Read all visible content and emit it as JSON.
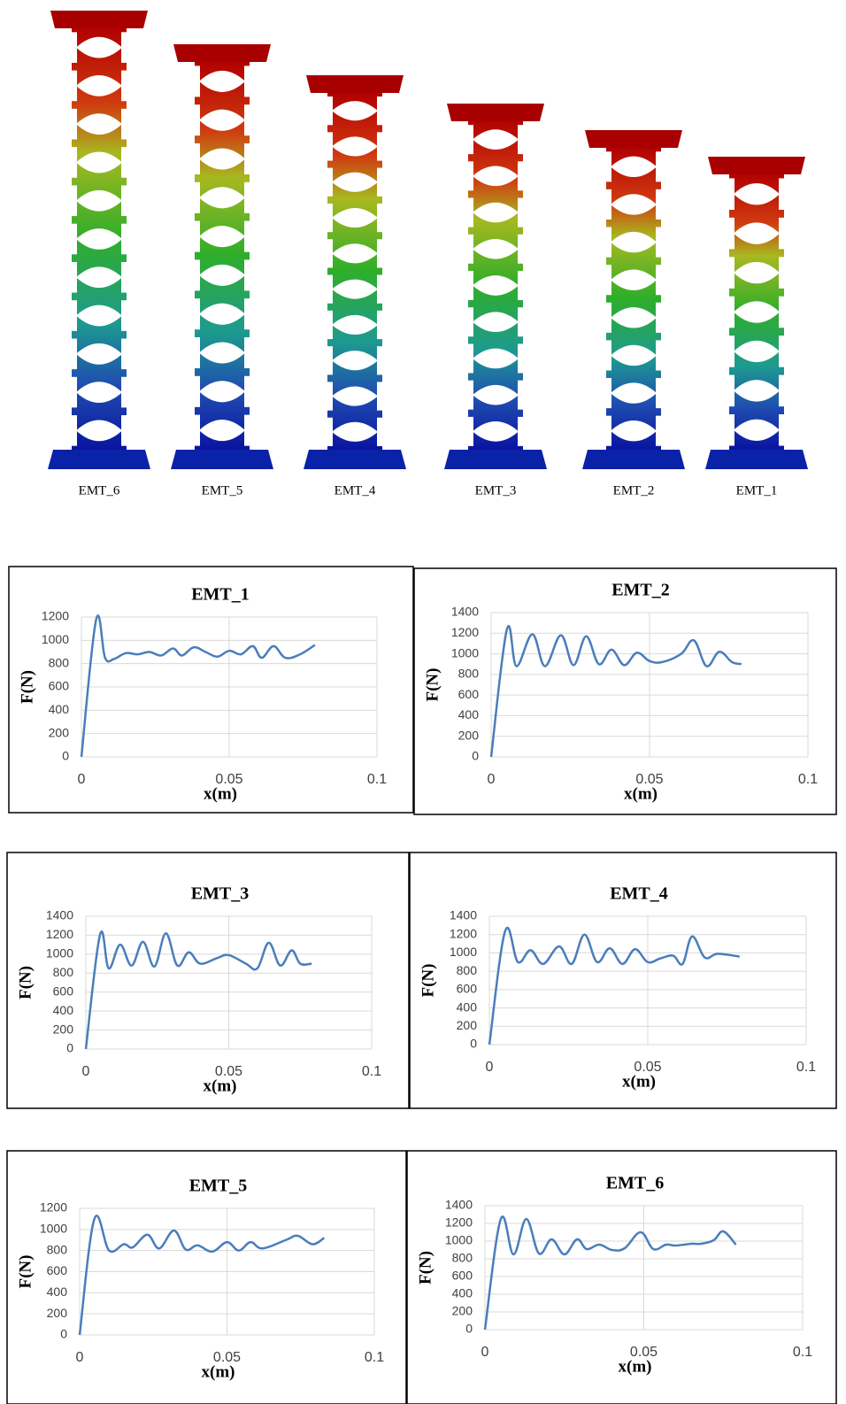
{
  "figure": {
    "labels": [
      "EMT_6",
      "EMT_5",
      "EMT_4",
      "EMT_3",
      "EMT_2",
      "EMT_1"
    ]
  },
  "chart_data": [
    {
      "type": "line",
      "title": "EMT_1",
      "x_label": "x(m)",
      "y_label": "F(N)",
      "xlim": [
        0,
        0.1
      ],
      "xticks": [
        0,
        0.05,
        0.1
      ],
      "ylim": [
        0,
        1200
      ],
      "yticks": [
        0,
        200,
        400,
        600,
        800,
        1000,
        1200
      ],
      "grid": true,
      "x": [
        0,
        0.005,
        0.008,
        0.011,
        0.015,
        0.019,
        0.023,
        0.027,
        0.031,
        0.034,
        0.038,
        0.042,
        0.046,
        0.05,
        0.054,
        0.058,
        0.061,
        0.065,
        0.069,
        0.074,
        0.079
      ],
      "series": [
        {
          "color": "#4a7ebb",
          "values": [
            0,
            1180,
            850,
            840,
            890,
            880,
            900,
            870,
            930,
            870,
            940,
            900,
            860,
            910,
            880,
            950,
            850,
            950,
            850,
            880,
            960
          ]
        }
      ]
    },
    {
      "type": "line",
      "title": "EMT_2",
      "x_label": "x(m)",
      "y_label": "F(N)",
      "xlim": [
        0,
        0.1
      ],
      "xticks": [
        0,
        0.05,
        0.1
      ],
      "ylim": [
        0,
        1400
      ],
      "yticks": [
        0,
        200,
        400,
        600,
        800,
        1000,
        1200,
        1400
      ],
      "grid": true,
      "x": [
        0,
        0.005,
        0.008,
        0.013,
        0.017,
        0.022,
        0.026,
        0.03,
        0.034,
        0.038,
        0.042,
        0.046,
        0.05,
        0.054,
        0.06,
        0.064,
        0.068,
        0.072,
        0.076,
        0.079
      ],
      "series": [
        {
          "color": "#4a7ebb",
          "values": [
            0,
            1240,
            880,
            1190,
            880,
            1180,
            890,
            1170,
            900,
            1040,
            890,
            1010,
            930,
            920,
            1000,
            1130,
            880,
            1020,
            920,
            900
          ]
        }
      ]
    },
    {
      "type": "line",
      "title": "EMT_3",
      "x_label": "x(m)",
      "y_label": "F(N)",
      "xlim": [
        0,
        0.1
      ],
      "xticks": [
        0,
        0.05,
        0.1
      ],
      "ylim": [
        0,
        1400
      ],
      "yticks": [
        0,
        200,
        400,
        600,
        800,
        1000,
        1200,
        1400
      ],
      "grid": true,
      "x": [
        0,
        0.005,
        0.008,
        0.012,
        0.016,
        0.02,
        0.024,
        0.028,
        0.032,
        0.036,
        0.04,
        0.046,
        0.05,
        0.056,
        0.06,
        0.064,
        0.068,
        0.072,
        0.075,
        0.079
      ],
      "series": [
        {
          "color": "#4a7ebb",
          "values": [
            0,
            1210,
            850,
            1100,
            880,
            1130,
            870,
            1220,
            880,
            1020,
            900,
            960,
            990,
            900,
            850,
            1120,
            880,
            1040,
            900,
            900
          ]
        }
      ]
    },
    {
      "type": "line",
      "title": "EMT_4",
      "x_label": "x(m)",
      "y_label": "F(N)",
      "xlim": [
        0,
        0.1
      ],
      "xticks": [
        0,
        0.05,
        0.1
      ],
      "ylim": [
        0,
        1400
      ],
      "yticks": [
        0,
        200,
        400,
        600,
        800,
        1000,
        1200,
        1400
      ],
      "grid": true,
      "x": [
        0,
        0.005,
        0.009,
        0.013,
        0.017,
        0.022,
        0.026,
        0.03,
        0.034,
        0.038,
        0.042,
        0.046,
        0.05,
        0.054,
        0.058,
        0.061,
        0.064,
        0.068,
        0.072,
        0.079
      ],
      "series": [
        {
          "color": "#4a7ebb",
          "values": [
            0,
            1240,
            900,
            1030,
            880,
            1070,
            880,
            1200,
            900,
            1050,
            880,
            1040,
            900,
            940,
            970,
            880,
            1180,
            950,
            990,
            960
          ]
        }
      ]
    },
    {
      "type": "line",
      "title": "EMT_5",
      "x_label": "x(m)",
      "y_label": "F(N)",
      "xlim": [
        0,
        0.1
      ],
      "xticks": [
        0,
        0.05,
        0.1
      ],
      "ylim": [
        0,
        1200
      ],
      "yticks": [
        0,
        200,
        400,
        600,
        800,
        1000,
        1200
      ],
      "grid": true,
      "x": [
        0,
        0.005,
        0.01,
        0.015,
        0.018,
        0.023,
        0.027,
        0.032,
        0.036,
        0.04,
        0.045,
        0.05,
        0.054,
        0.058,
        0.062,
        0.07,
        0.074,
        0.079,
        0.083
      ],
      "series": [
        {
          "color": "#4a7ebb",
          "values": [
            0,
            1100,
            800,
            860,
            830,
            950,
            820,
            990,
            810,
            850,
            790,
            880,
            800,
            880,
            820,
            900,
            940,
            860,
            920
          ]
        }
      ]
    },
    {
      "type": "line",
      "title": "EMT_6",
      "x_label": "x(m)",
      "y_label": "F(N)",
      "xlim": [
        0,
        0.1
      ],
      "xticks": [
        0,
        0.05,
        0.1
      ],
      "ylim": [
        0,
        1400
      ],
      "yticks": [
        0,
        200,
        400,
        600,
        800,
        1000,
        1200,
        1400
      ],
      "grid": true,
      "x": [
        0,
        0.005,
        0.009,
        0.013,
        0.017,
        0.021,
        0.025,
        0.029,
        0.032,
        0.036,
        0.04,
        0.044,
        0.049,
        0.053,
        0.057,
        0.06,
        0.065,
        0.068,
        0.072,
        0.075,
        0.079
      ],
      "series": [
        {
          "color": "#4a7ebb",
          "values": [
            0,
            1250,
            850,
            1250,
            860,
            1020,
            850,
            1020,
            910,
            960,
            900,
            920,
            1100,
            910,
            960,
            950,
            970,
            970,
            1010,
            1110,
            960
          ]
        }
      ]
    }
  ]
}
